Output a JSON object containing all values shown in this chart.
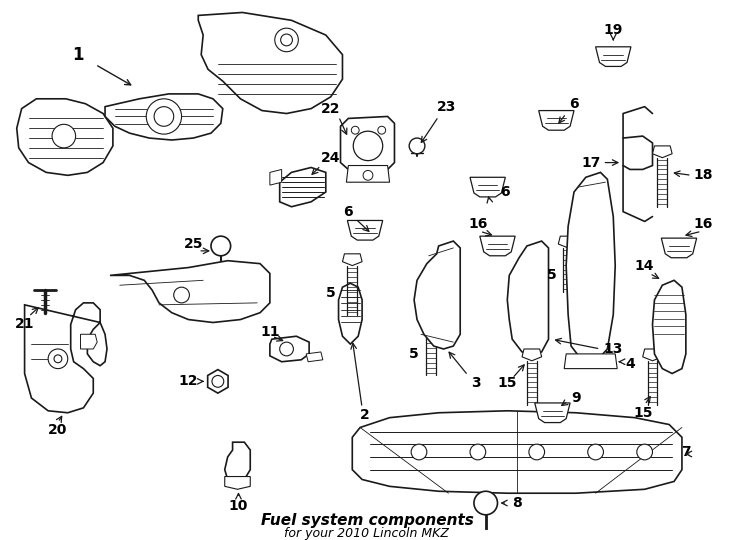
{
  "title": "Fuel system components",
  "subtitle": "for your 2010 Lincoln MKZ",
  "background_color": "#ffffff",
  "line_color": "#1a1a1a",
  "fig_width": 7.34,
  "fig_height": 5.4,
  "dpi": 100
}
